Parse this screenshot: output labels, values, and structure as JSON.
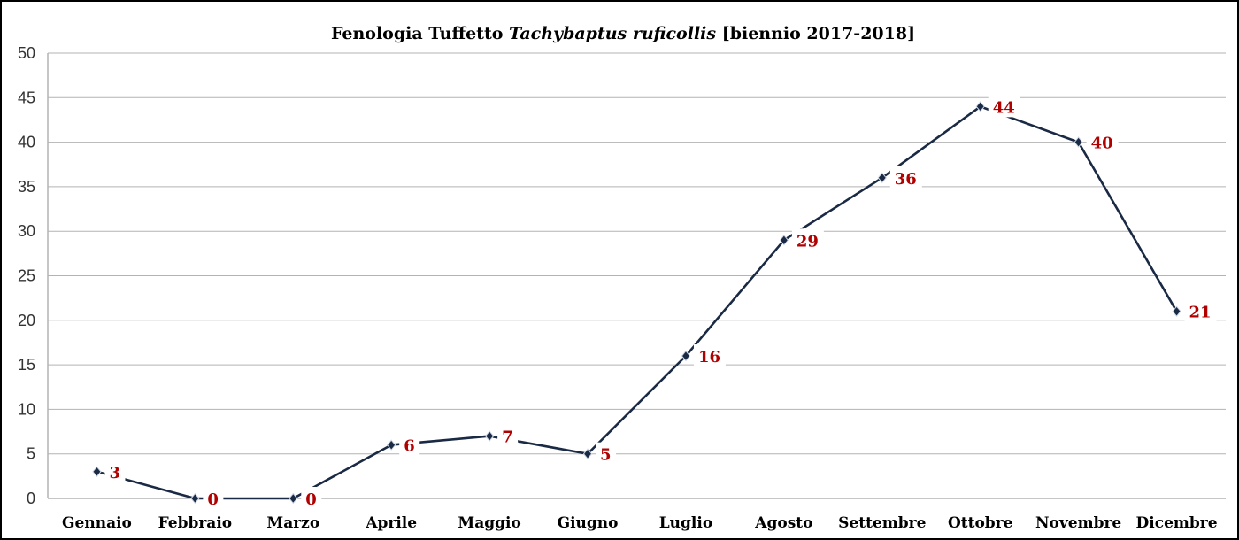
{
  "chart_data": {
    "type": "line",
    "title": {
      "part1": "Fenologia Tuffetto ",
      "part2": "Tachybaptus ruficollis",
      "part3": " [biennio 2017-2018]"
    },
    "xlabel": "",
    "ylabel": "",
    "categories": [
      "Gennaio",
      "Febbraio",
      "Marzo",
      "Aprile",
      "Maggio",
      "Giugno",
      "Luglio",
      "Agosto",
      "Settembre",
      "Ottobre",
      "Novembre",
      "Dicembre"
    ],
    "values": [
      3,
      0,
      0,
      6,
      7,
      5,
      16,
      29,
      36,
      44,
      40,
      21
    ],
    "ylim": [
      0,
      50
    ],
    "yticks": [
      0,
      5,
      10,
      15,
      20,
      25,
      30,
      35,
      40,
      45,
      50
    ],
    "grid": true,
    "legend": "none",
    "line_color": "#1a2a44",
    "label_color": "#b00000"
  }
}
